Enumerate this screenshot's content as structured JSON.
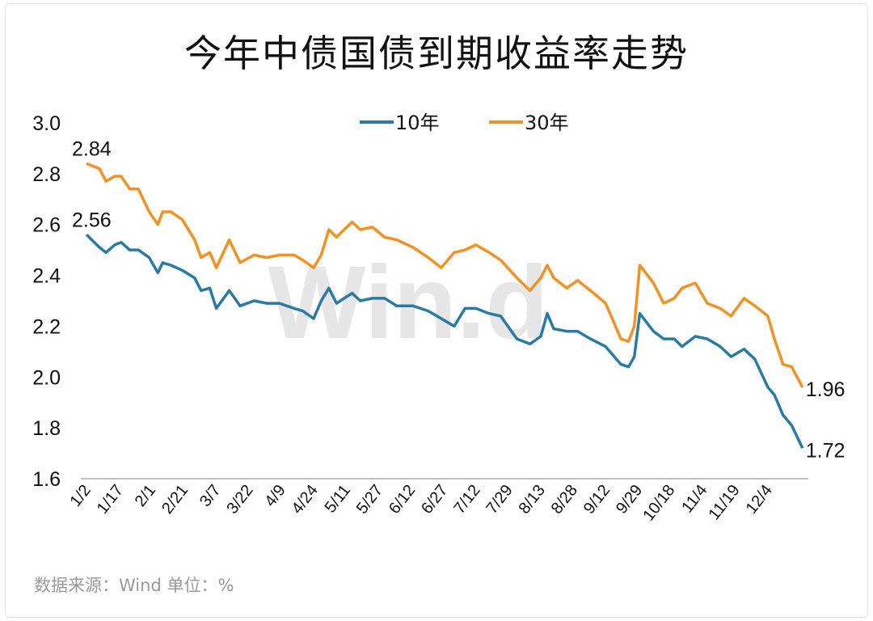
{
  "title": "今年中债国债到期收益率走势",
  "source": "数据来源：Wind   单位：%",
  "watermark": "Win.d",
  "chart_data": {
    "type": "line",
    "title": "今年中债国债到期收益率走势",
    "ylim": [
      1.6,
      3.0
    ],
    "yticks": [
      "1.6",
      "1.8",
      "2.0",
      "2.2",
      "2.4",
      "2.6",
      "2.8",
      "3.0"
    ],
    "xticks": [
      "1/2",
      "1/17",
      "2/1",
      "2/21",
      "3/7",
      "3/22",
      "4/9",
      "4/24",
      "5/11",
      "5/27",
      "6/12",
      "6/27",
      "7/12",
      "7/29",
      "8/13",
      "8/28",
      "9/12",
      "9/29",
      "10/18",
      "11/4",
      "11/19",
      "12/4"
    ],
    "grid": false,
    "legend": "top-center",
    "x": [
      "1/2",
      "1/8",
      "1/11",
      "1/15",
      "1/18",
      "1/22",
      "1/26",
      "1/31",
      "2/5",
      "2/8",
      "2/13",
      "2/20",
      "2/26",
      "2/29",
      "3/4",
      "3/7",
      "3/13",
      "3/18",
      "3/25",
      "4/1",
      "4/8",
      "4/15",
      "4/19",
      "4/24",
      "4/28",
      "5/2",
      "5/6",
      "5/10",
      "5/14",
      "5/18",
      "5/24",
      "5/30",
      "6/5",
      "6/13",
      "6/20",
      "6/26",
      "7/2",
      "7/7",
      "7/12",
      "7/19",
      "7/25",
      "8/2",
      "8/8",
      "8/13",
      "8/16",
      "8/19",
      "8/25",
      "8/30",
      "9/5",
      "9/12",
      "9/20",
      "9/24",
      "9/27",
      "9/30",
      "10/8",
      "10/14",
      "10/20",
      "10/24",
      "10/31",
      "11/6",
      "11/12",
      "11/17",
      "11/23",
      "11/28",
      "12/4",
      "12/7",
      "12/11",
      "12/15",
      "12/20"
    ],
    "series": [
      {
        "name": "10年",
        "color": "#2a7aa6",
        "values": [
          2.56,
          2.51,
          2.49,
          2.52,
          2.53,
          2.5,
          2.5,
          2.47,
          2.41,
          2.45,
          2.44,
          2.42,
          2.39,
          2.34,
          2.35,
          2.27,
          2.34,
          2.28,
          2.3,
          2.29,
          2.29,
          2.27,
          2.26,
          2.23,
          2.3,
          2.35,
          2.29,
          2.31,
          2.33,
          2.3,
          2.31,
          2.31,
          2.28,
          2.28,
          2.26,
          2.23,
          2.2,
          2.27,
          2.27,
          2.25,
          2.24,
          2.15,
          2.13,
          2.16,
          2.25,
          2.19,
          2.18,
          2.18,
          2.15,
          2.12,
          2.05,
          2.04,
          2.08,
          2.25,
          2.18,
          2.15,
          2.15,
          2.12,
          2.16,
          2.15,
          2.12,
          2.08,
          2.11,
          2.07,
          1.96,
          1.93,
          1.85,
          1.81,
          1.72
        ],
        "labels": {
          "first": "2.56",
          "last": "1.72"
        }
      },
      {
        "name": "30年",
        "color": "#f39122",
        "values": [
          2.84,
          2.82,
          2.77,
          2.79,
          2.79,
          2.74,
          2.74,
          2.65,
          2.6,
          2.65,
          2.65,
          2.62,
          2.54,
          2.47,
          2.49,
          2.43,
          2.54,
          2.45,
          2.48,
          2.47,
          2.48,
          2.48,
          2.46,
          2.43,
          2.48,
          2.58,
          2.55,
          2.58,
          2.61,
          2.58,
          2.59,
          2.55,
          2.54,
          2.51,
          2.47,
          2.43,
          2.49,
          2.5,
          2.52,
          2.49,
          2.46,
          2.39,
          2.34,
          2.39,
          2.44,
          2.39,
          2.35,
          2.38,
          2.34,
          2.29,
          2.15,
          2.14,
          2.2,
          2.44,
          2.37,
          2.29,
          2.31,
          2.35,
          2.37,
          2.29,
          2.27,
          2.24,
          2.31,
          2.28,
          2.24,
          2.15,
          2.05,
          2.04,
          1.96
        ],
        "labels": {
          "first": "2.84",
          "last": "1.96"
        }
      }
    ]
  }
}
